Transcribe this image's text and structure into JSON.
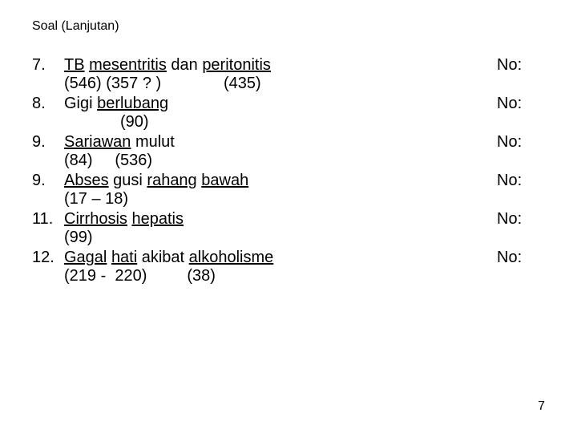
{
  "title": "Soal (Lanjutan)",
  "page_number": "7",
  "items": [
    {
      "num": "7.",
      "seg1": "TB",
      "seg2": " ",
      "seg3": "mesentritis",
      "seg4": " dan ",
      "seg5": "peritonitis",
      "no": "No:",
      "codes": "(546) (357 ? )              (435)",
      "codes_indent": "normal"
    },
    {
      "num": "8.",
      "seg1": "Gigi ",
      "seg3": "berlubang",
      "no": "No:",
      "codes": "(90)",
      "codes_indent": "deep"
    },
    {
      "num": "9.",
      "seg1": "Sariawan",
      "seg2": " mulut",
      "no": "No:",
      "codes": "(84)     (536)",
      "codes_indent": "normal"
    },
    {
      "num": "9.",
      "seg1": "Abses",
      "seg2": " gusi ",
      "seg3": "rahang",
      "seg4": " ",
      "seg5": "bawah",
      "no": "No:",
      "codes": "(17 – 18)",
      "codes_indent": "normal"
    },
    {
      "num": "11.",
      "seg1": "Cirrhosis",
      "seg2": " ",
      "seg3": "hepatis",
      "no": "No:",
      "codes": "(99)",
      "codes_indent": "normal"
    },
    {
      "num": "12.",
      "seg1": "Gagal",
      "seg2": " ",
      "seg3": "hati",
      "seg4": " akibat ",
      "seg5": "alkoholisme",
      "no": "No:",
      "codes": "(219 -  220)         (38)",
      "codes_indent": "normal"
    }
  ]
}
